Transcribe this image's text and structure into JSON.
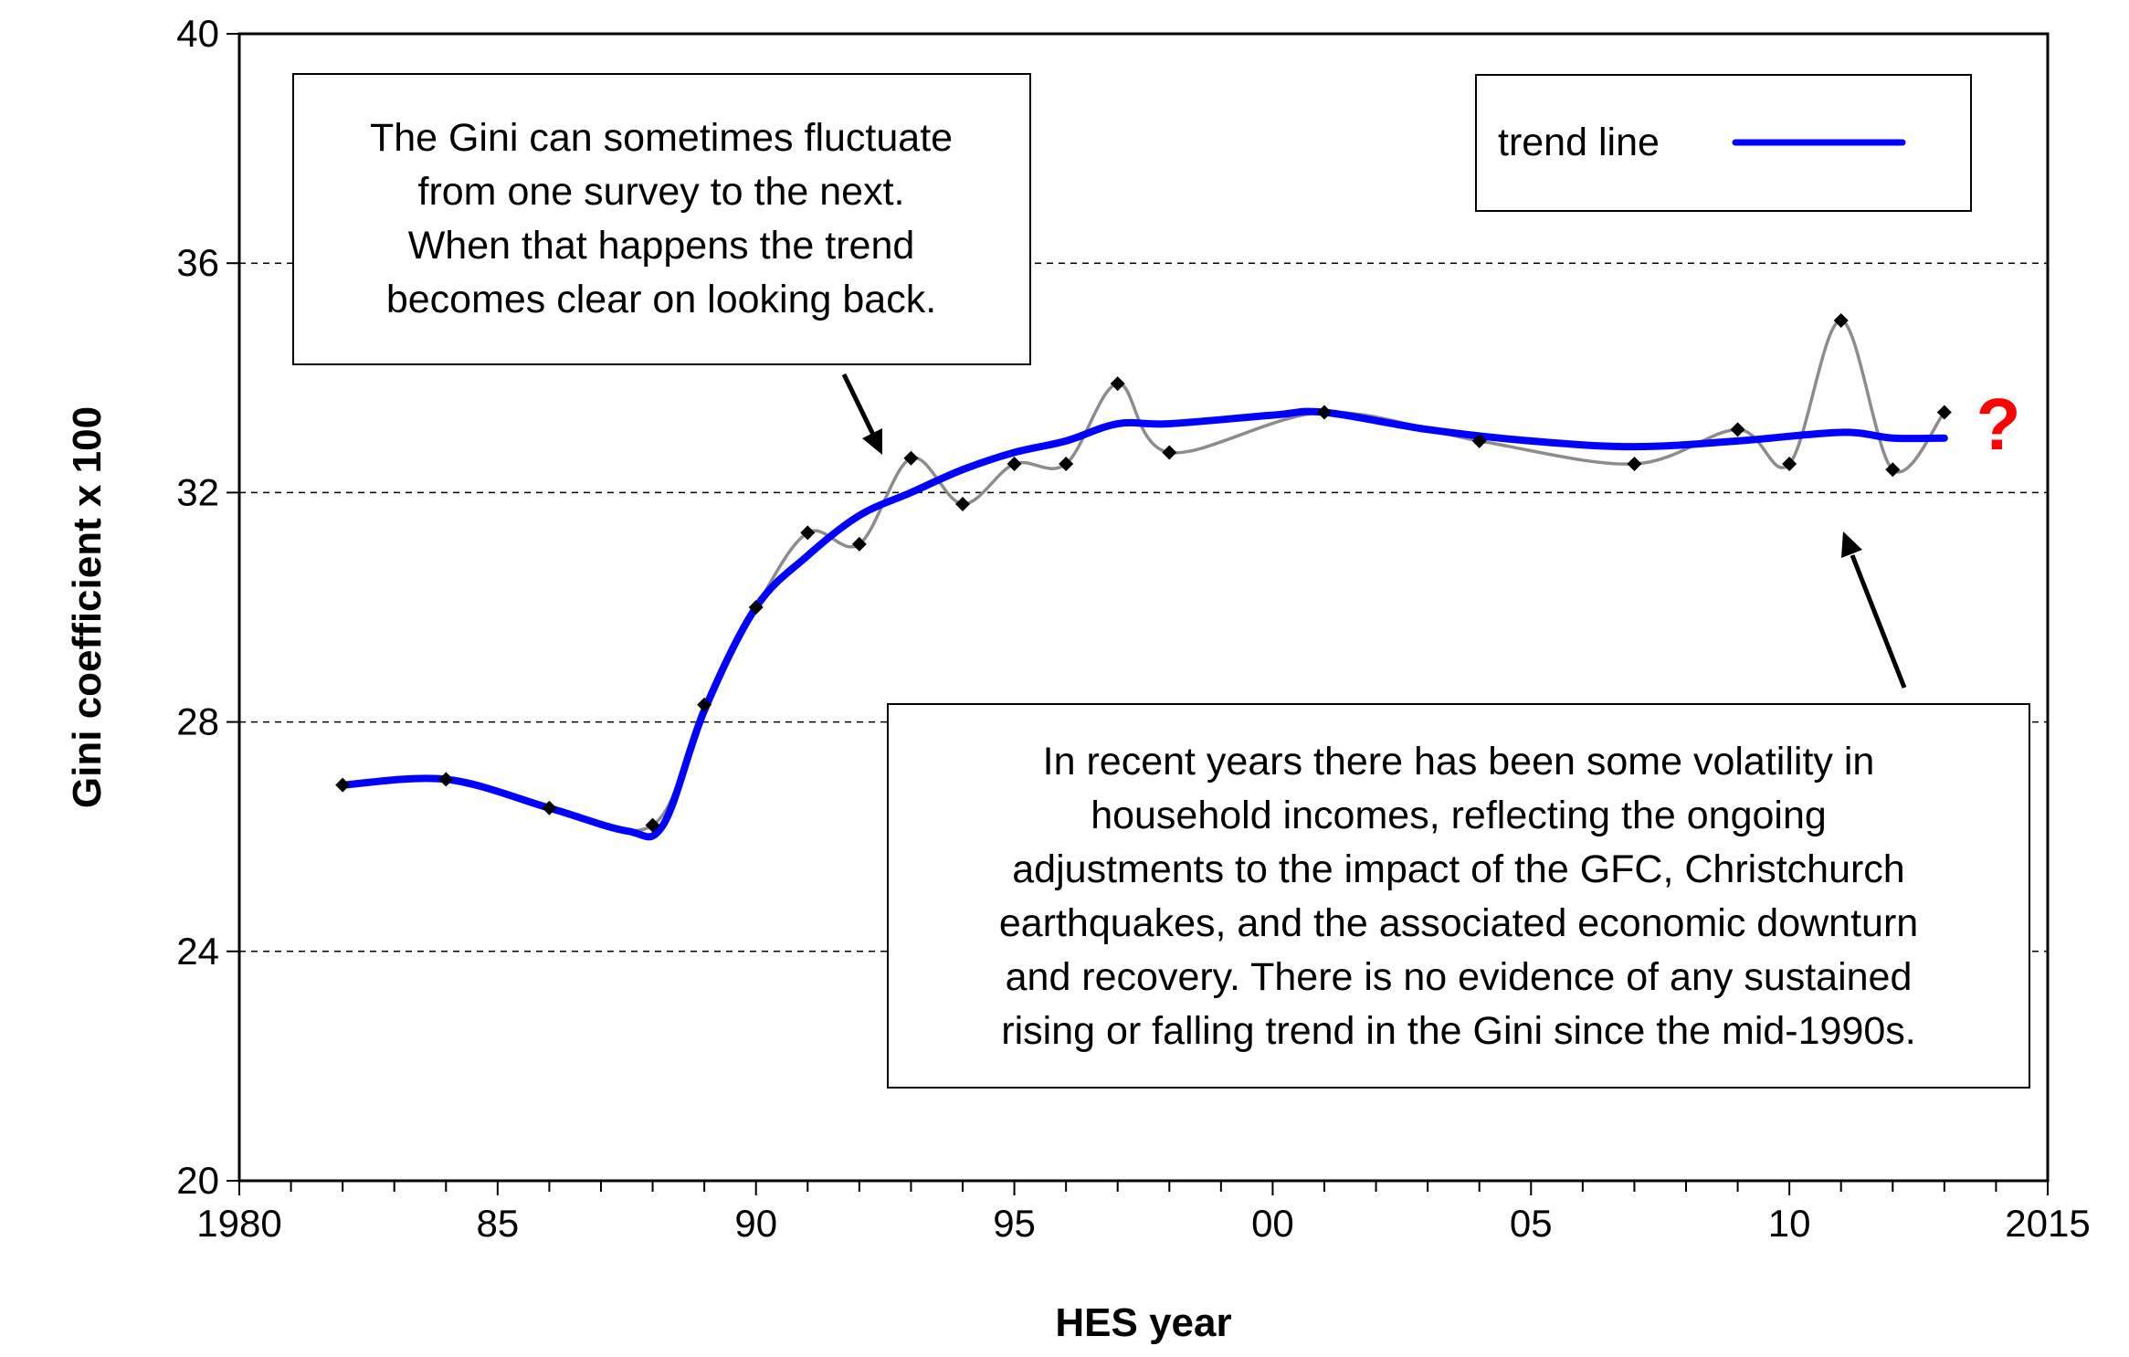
{
  "chart_data": {
    "type": "line",
    "xlabel": "HES year",
    "ylabel": "Gini coefficient x 100",
    "xlim": [
      1980,
      2015
    ],
    "ylim": [
      20,
      40
    ],
    "x_ticks": [
      1980,
      1985,
      1990,
      1995,
      2000,
      2005,
      2010,
      2015
    ],
    "x_tick_labels": [
      "1980",
      "85",
      "90",
      "95",
      "00",
      "05",
      "10",
      "2015"
    ],
    "y_ticks": [
      20,
      24,
      28,
      32,
      36,
      40
    ],
    "y_tick_labels": [
      "20",
      "24",
      "28",
      "32",
      "36",
      "40"
    ],
    "grid": "horizontal dashed",
    "series": [
      {
        "name": "",
        "color": "#8c8c8c",
        "marker": "diamond",
        "points": [
          [
            1982,
            26.9
          ],
          [
            1984,
            27.0
          ],
          [
            1986,
            26.5
          ],
          [
            1988,
            26.2
          ],
          [
            1989,
            28.3
          ],
          [
            1990,
            30.0
          ],
          [
            1991,
            31.3
          ],
          [
            1992,
            31.1
          ],
          [
            1993,
            32.6
          ],
          [
            1994,
            31.8
          ],
          [
            1995,
            32.5
          ],
          [
            1996,
            32.5
          ],
          [
            1997,
            33.9
          ],
          [
            1998,
            32.7
          ],
          [
            2001,
            33.4
          ],
          [
            2004,
            32.9
          ],
          [
            2007,
            32.5
          ],
          [
            2009,
            33.1
          ],
          [
            2010,
            32.5
          ],
          [
            2011,
            35.0
          ],
          [
            2012,
            32.4
          ],
          [
            2013,
            33.4
          ]
        ]
      },
      {
        "name": "trend line",
        "color": "#0000ff",
        "points": [
          [
            1982,
            26.9
          ],
          [
            1984,
            27.0
          ],
          [
            1986,
            26.5
          ],
          [
            1987.5,
            26.1
          ],
          [
            1988.2,
            26.2
          ],
          [
            1989,
            28.2
          ],
          [
            1990,
            30.0
          ],
          [
            1991,
            30.9
          ],
          [
            1992,
            31.6
          ],
          [
            1993,
            32.0
          ],
          [
            1994,
            32.4
          ],
          [
            1995,
            32.7
          ],
          [
            1996,
            32.9
          ],
          [
            1997,
            33.2
          ],
          [
            1998,
            33.2
          ],
          [
            2000,
            33.35
          ],
          [
            2001,
            33.4
          ],
          [
            2003,
            33.1
          ],
          [
            2005,
            32.9
          ],
          [
            2007,
            32.8
          ],
          [
            2009,
            32.9
          ],
          [
            2011,
            33.05
          ],
          [
            2012,
            32.95
          ],
          [
            2013,
            32.95
          ]
        ]
      }
    ],
    "legend": {
      "placement": "top-right",
      "label": "trend line"
    },
    "annotations": [
      {
        "id": "top",
        "lines": [
          "The Gini can sometimes fluctuate",
          "from one survey to the next.",
          "When that happens the trend",
          "becomes clear on looking back."
        ]
      },
      {
        "id": "bottom",
        "lines": [
          "In recent years there has been some volatility in",
          "household incomes, reflecting the ongoing",
          "adjustments to the impact of the GFC, Christchurch",
          "earthquakes, and the associated economic downturn",
          "and recovery. There is no evidence of any sustained",
          "rising or falling trend in the Gini since the mid-1990s."
        ]
      }
    ],
    "question_mark": "?"
  }
}
